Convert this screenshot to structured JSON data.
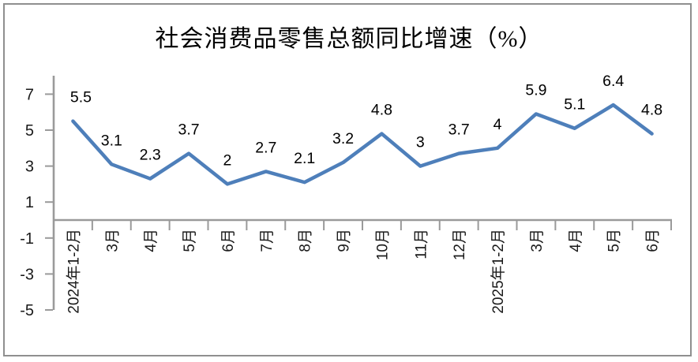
{
  "chart_data": {
    "type": "line",
    "title": "社会消费品零售总额同比增速（%）",
    "categories": [
      "2024年1-2月",
      "3月",
      "4月",
      "5月",
      "6月",
      "7月",
      "8月",
      "9月",
      "10月",
      "11月",
      "12月",
      "2025年1-2月",
      "3月",
      "4月",
      "5月",
      "6月"
    ],
    "series": [
      {
        "name": "社会消费品零售总额同比增速",
        "values": [
          5.5,
          3.1,
          2.3,
          3.7,
          2,
          2.7,
          2.1,
          3.2,
          4.8,
          3,
          3.7,
          4,
          5.9,
          5.1,
          6.4,
          4.8
        ],
        "data_labels": [
          "5.5",
          "3.1",
          "2.3",
          "3.7",
          "2",
          "2.7",
          "2.1",
          "3.2",
          "4.8",
          "3",
          "3.7",
          "4",
          "5.9",
          "5.1",
          "6.4",
          "4.8"
        ]
      }
    ],
    "xlabel": "",
    "ylabel": "",
    "ylim": [
      -5,
      8
    ],
    "y_ticks": [
      7,
      5,
      3,
      1,
      -1,
      -3,
      -5
    ],
    "grid": false,
    "legend_position": "none",
    "x_label_rotation_deg": -90,
    "colors": {
      "series_line": "#4e7fba",
      "axis_line": "#9a9a9a",
      "tick_label": "#1a1a1a",
      "data_label": "#000000",
      "title_text": "#000000",
      "frame_border": "#8f8f8f",
      "background": "#ffffff"
    }
  }
}
